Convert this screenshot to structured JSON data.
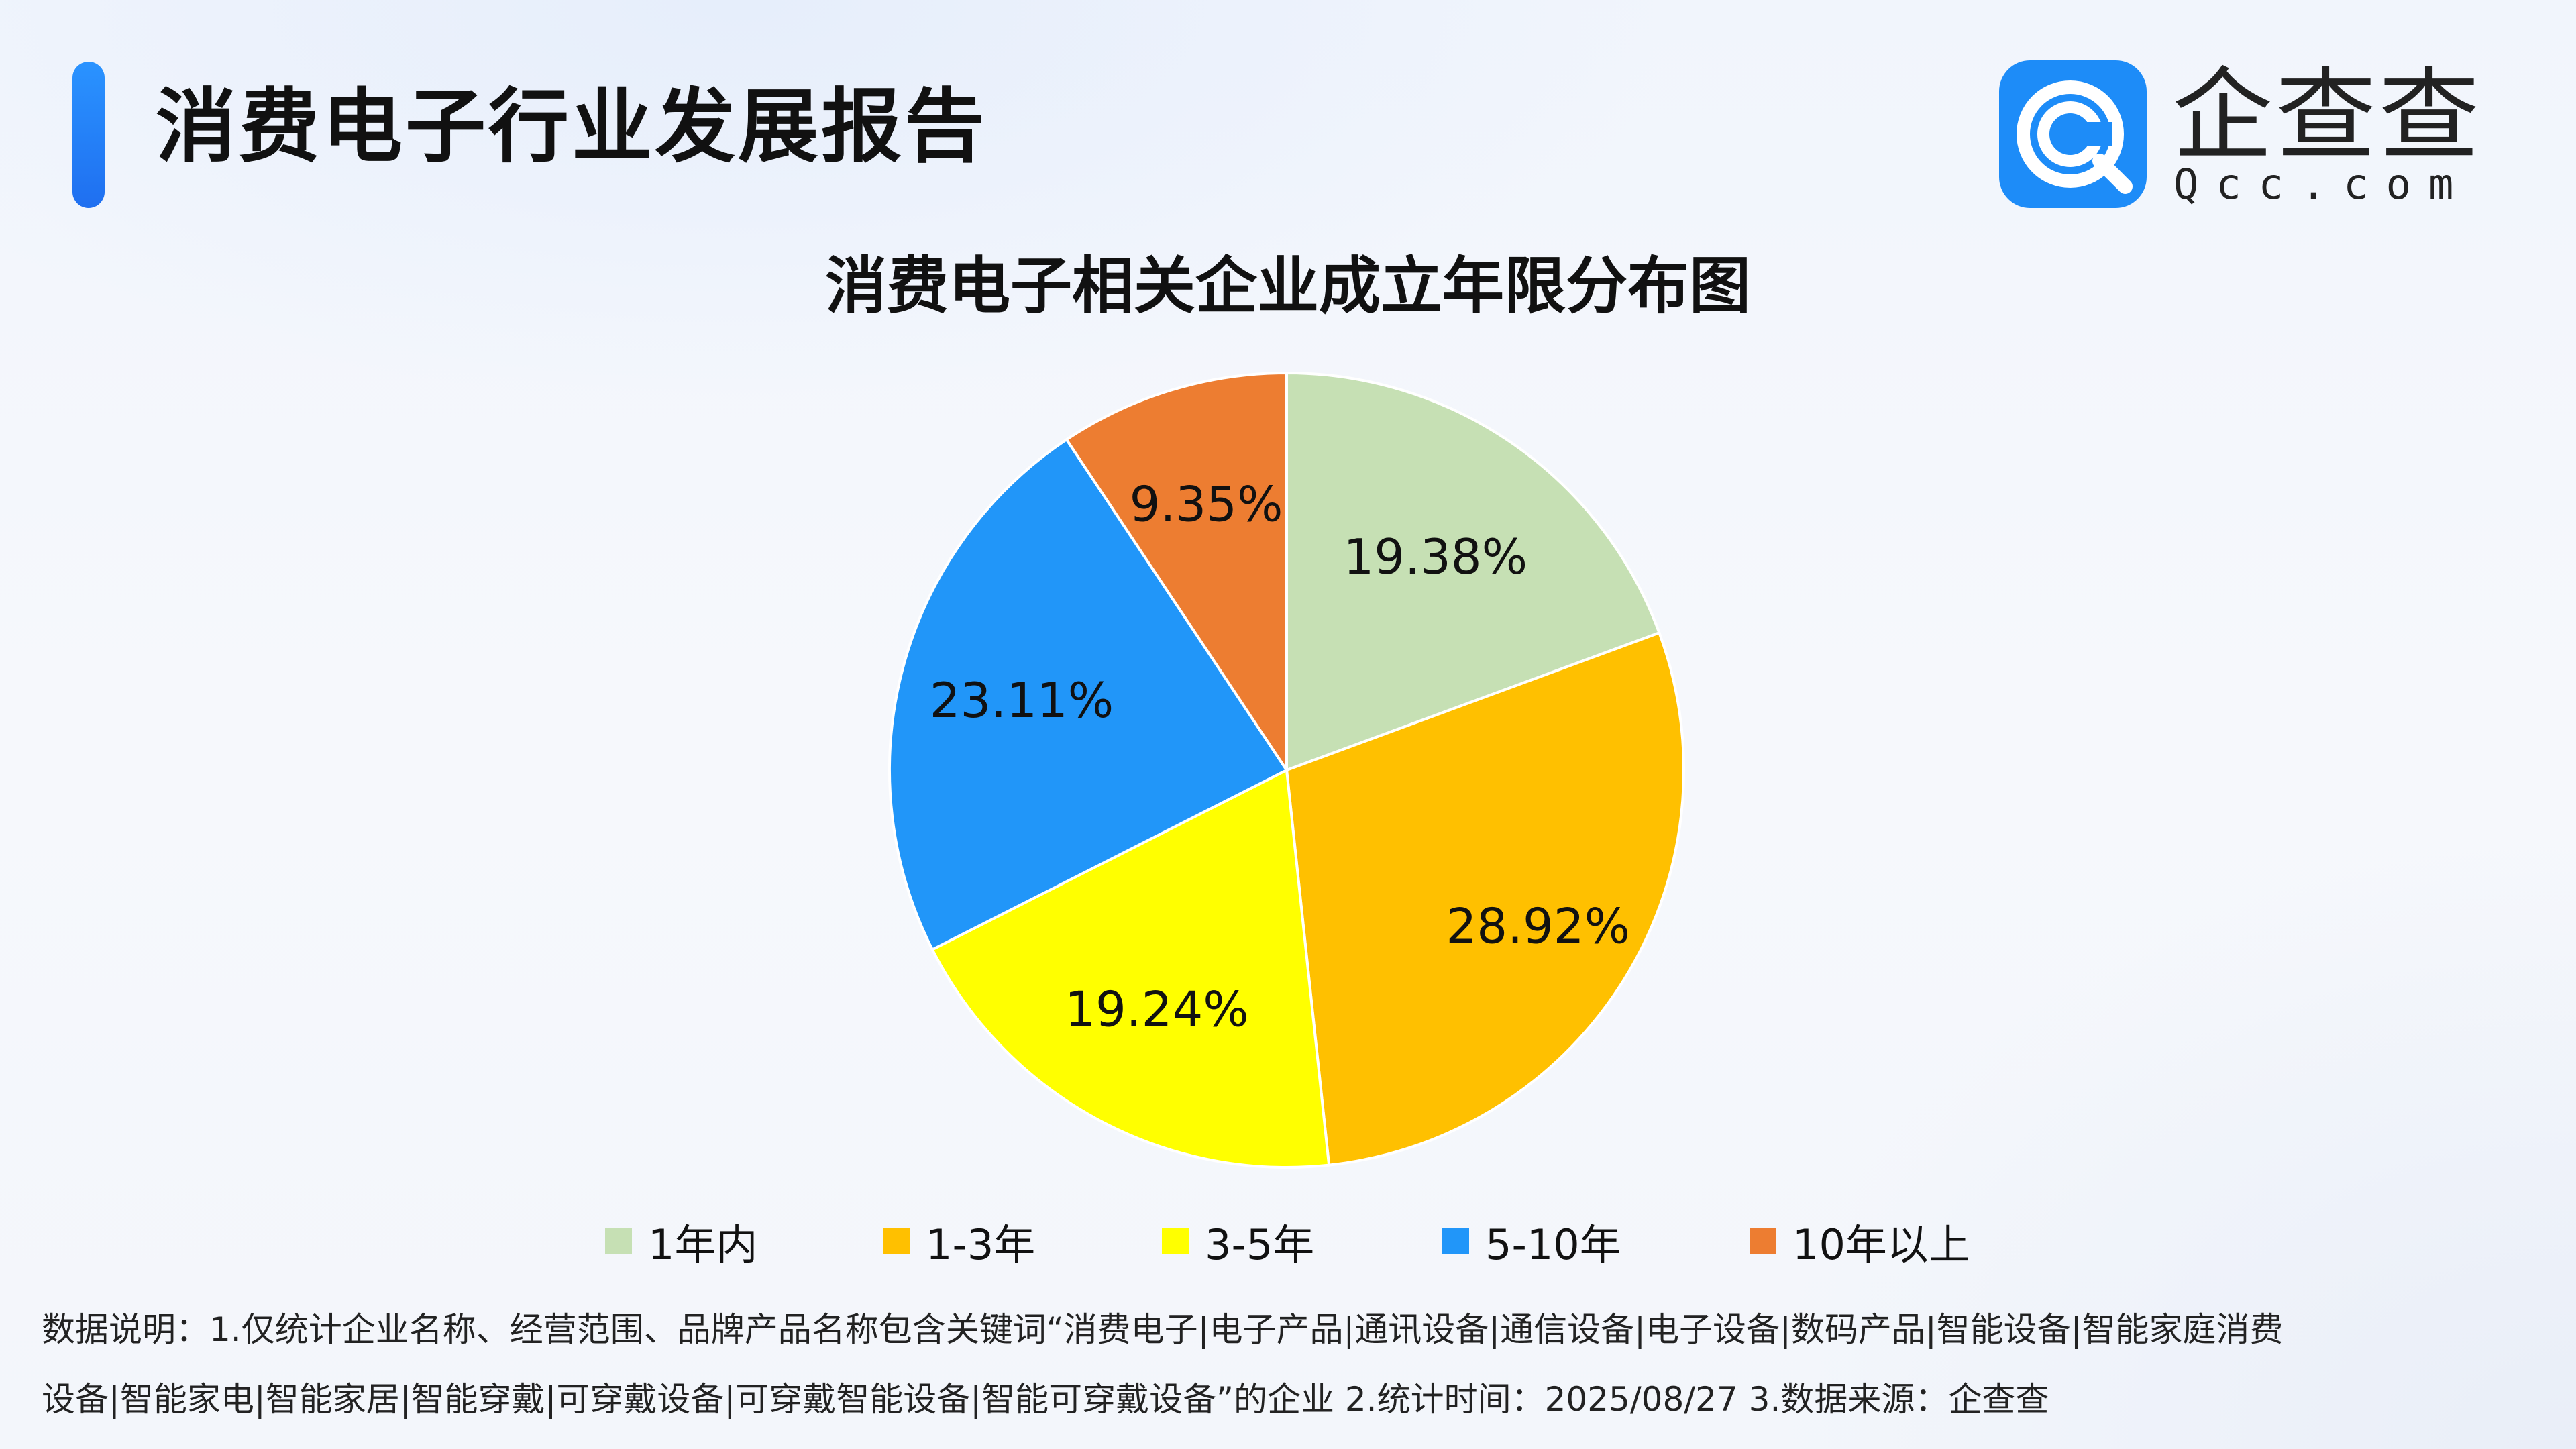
{
  "header": {
    "title": "消费电子行业发展报告"
  },
  "logo": {
    "name": "企查查",
    "domain": "Qcc.com",
    "badge_color": "#1d8cf8",
    "icon": "qcc-logo-icon"
  },
  "colors": {
    "accent": "#2a93ff"
  },
  "chart_data": {
    "type": "pie",
    "title": "消费电子相关企业成立年限分布图",
    "categories": [
      "1年内",
      "1-3年",
      "3-5年",
      "5-10年",
      "10年以上"
    ],
    "values": [
      19.38,
      28.92,
      19.24,
      23.11,
      9.35
    ],
    "labels": [
      "19.38%",
      "28.92%",
      "19.24%",
      "23.11%",
      "9.35%"
    ],
    "colors": [
      "#c6e0b4",
      "#ffc000",
      "#ffff00",
      "#2196f9",
      "#ed7d31"
    ],
    "start": "12 o'clock",
    "direction": "clockwise",
    "legend_position": "bottom"
  },
  "footnote": {
    "line1": "数据说明：1.仅统计企业名称、经营范围、品牌产品名称包含关键词“消费电子|电子产品|通讯设备|通信设备|电子设备|数码产品|智能设备|智能家庭消费",
    "line2": "设备|智能家电|智能家居|智能穿戴|可穿戴设备|可穿戴智能设备|智能可穿戴设备”的企业   2.统计时间：2025/08/27    3.数据来源：企查查"
  }
}
